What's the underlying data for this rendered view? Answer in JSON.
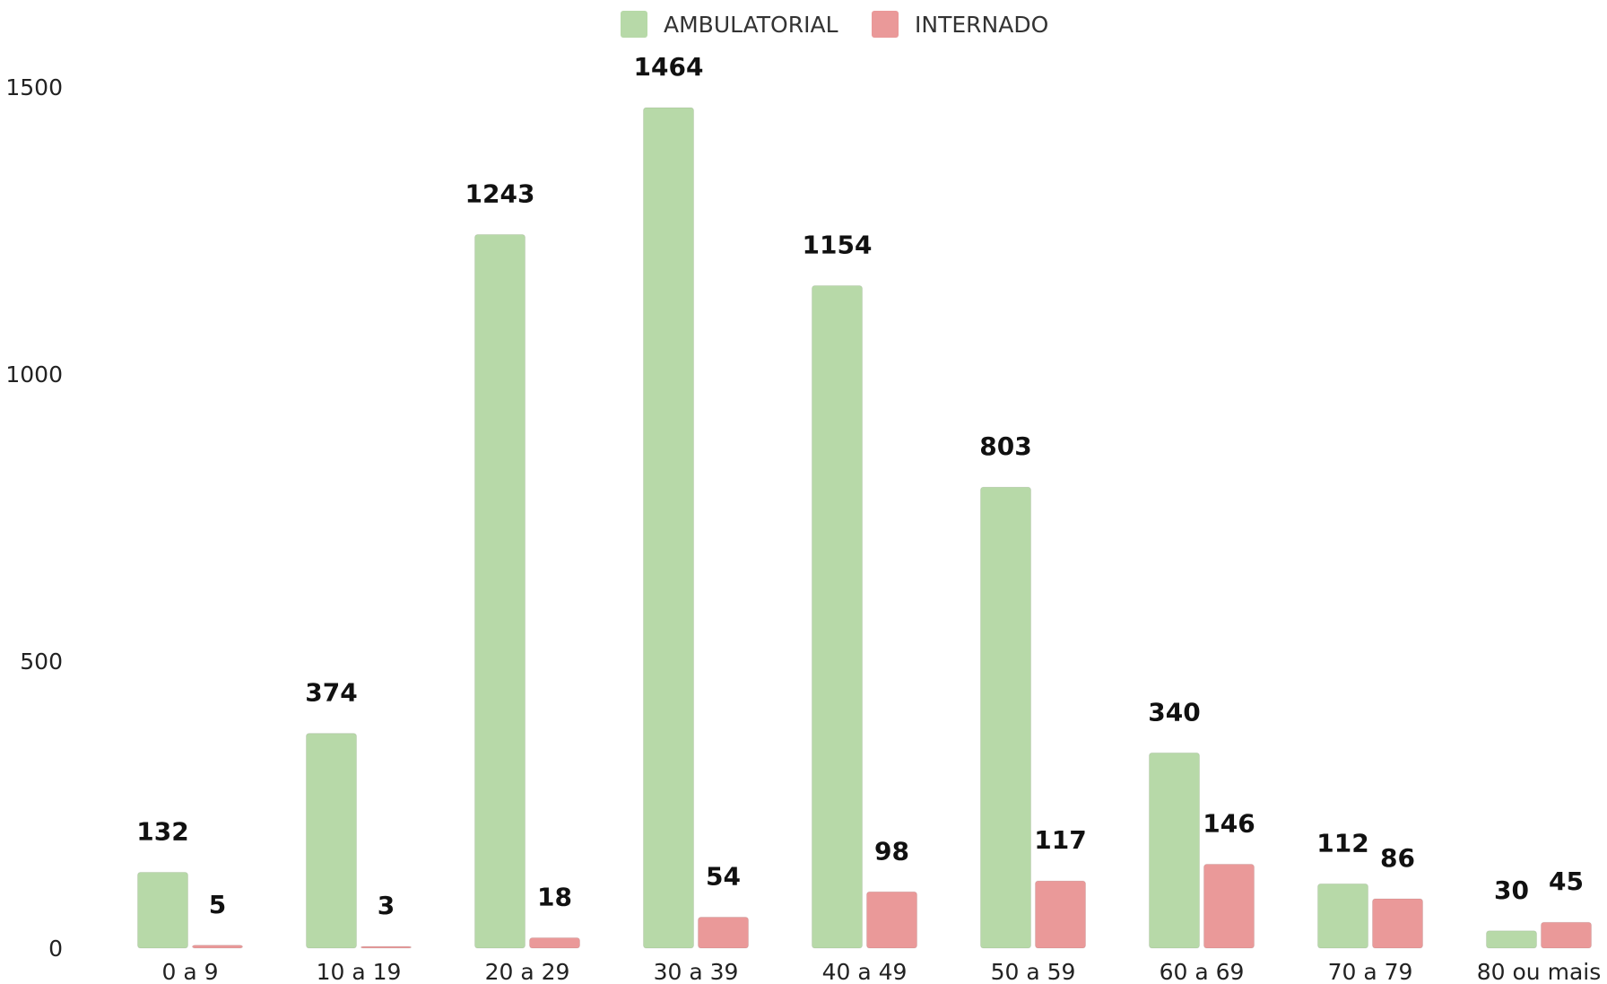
{
  "chart_data": {
    "type": "bar",
    "categories": [
      "0 a 9",
      "10 a 19",
      "20 a 29",
      "30 a 39",
      "40 a 49",
      "50 a 59",
      "60 a 69",
      "70 a 79",
      "80 ou mais"
    ],
    "series": [
      {
        "name": "AMBULATORIAL",
        "color": "#b7d9a8",
        "values": [
          132,
          374,
          1243,
          1464,
          1154,
          803,
          340,
          112,
          30
        ]
      },
      {
        "name": "INTERNADO",
        "color": "#ea9999",
        "values": [
          5,
          3,
          18,
          54,
          98,
          117,
          146,
          86,
          45
        ]
      }
    ],
    "ylim": [
      0,
      1500
    ],
    "yticks": [
      0,
      500,
      1000,
      1500
    ],
    "grid": false,
    "legend_position": "top-center"
  }
}
